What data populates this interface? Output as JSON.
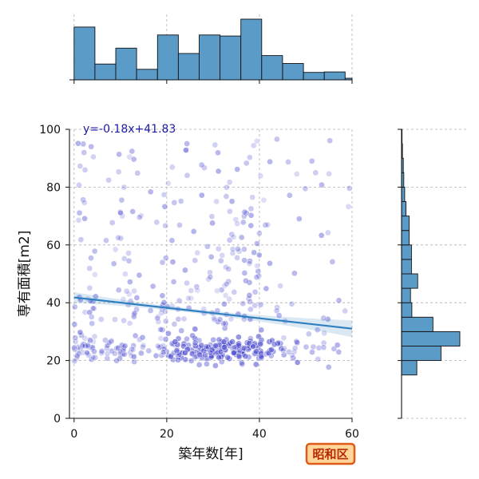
{
  "chart_data": {
    "type": "scatter",
    "title": "",
    "xlabel": "築年数[年]",
    "ylabel": "専有面積[m2]",
    "xlim": [
      -1,
      60
    ],
    "ylim": [
      0,
      100
    ],
    "xticks": [
      "0",
      "20",
      "40",
      "60"
    ],
    "yticks": [
      "0",
      "20",
      "40",
      "60",
      "80",
      "100"
    ],
    "grid": true,
    "regression": {
      "label": "y=-0.18x+41.83",
      "slope": -0.18,
      "intercept": 41.83
    },
    "badge": "昭和区",
    "x_histogram": {
      "bin_edges": [
        0,
        4.5,
        9,
        13.5,
        18,
        22.5,
        27,
        31.5,
        36,
        40.5,
        45,
        49.5,
        54,
        58.5,
        60
      ],
      "counts": [
        100,
        30,
        60,
        20,
        85,
        50,
        85,
        83,
        115,
        46,
        31,
        14,
        15,
        3
      ]
    },
    "y_histogram": {
      "bin_edges": [
        15,
        20,
        25,
        30,
        35,
        40,
        45,
        50,
        55,
        60,
        65,
        70,
        75,
        80,
        85,
        90,
        95,
        100
      ],
      "counts": [
        34,
        88,
        130,
        70,
        23,
        20,
        36,
        22,
        22,
        17,
        17,
        10,
        7,
        5,
        4,
        2,
        1
      ]
    }
  },
  "colors": {
    "point": "#4a4ad0",
    "regression": "#2f7ebf",
    "hist_fill": "#5b9bc8",
    "badge_fill": "#ffd599",
    "badge_border": "#e05a1a",
    "badge_text": "#b52a00",
    "annotation": "#1a1aa6"
  }
}
